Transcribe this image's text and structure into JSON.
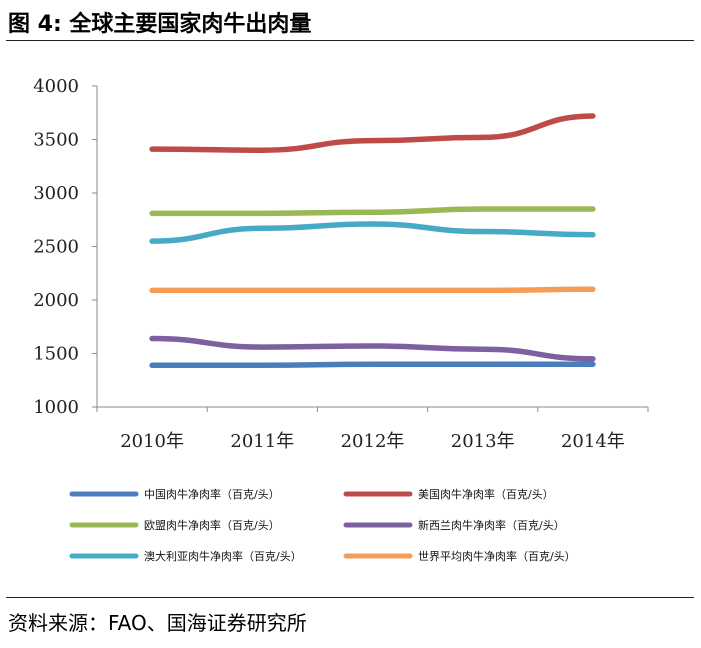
{
  "figure_title": "图 4:  全球主要国家肉牛出肉量",
  "source_text": "资料来源：FAO、国海证券研究所",
  "chart_data": {
    "type": "line",
    "title": "",
    "xlabel": "",
    "ylabel": "",
    "categories": [
      "2010年",
      "2011年",
      "2012年",
      "2013年",
      "2014年"
    ],
    "ylim": [
      1000,
      4000
    ],
    "yticks": [
      1000,
      1500,
      2000,
      2500,
      3000,
      3500,
      4000
    ],
    "grid": false,
    "legend_position": "bottom",
    "series": [
      {
        "name": "中国肉牛净肉率（百克/头）",
        "color": "#4a7ebb",
        "values": [
          1390,
          1390,
          1400,
          1400,
          1400
        ]
      },
      {
        "name": "美国肉牛净肉率（百克/头）",
        "color": "#be4b48",
        "values": [
          3410,
          3400,
          3490,
          3520,
          3720
        ]
      },
      {
        "name": "欧盟肉牛净肉率（百克/头）",
        "color": "#98b954",
        "values": [
          2810,
          2810,
          2820,
          2850,
          2850
        ]
      },
      {
        "name": "新西兰肉牛净肉率（百克/头）",
        "color": "#7d60a0",
        "values": [
          1640,
          1560,
          1570,
          1540,
          1450
        ]
      },
      {
        "name": "澳大利亚肉牛净肉率（百克/头）",
        "color": "#46aac5",
        "values": [
          2550,
          2670,
          2710,
          2640,
          2610
        ]
      },
      {
        "name": "世界平均肉牛净肉率（百克/头）",
        "color": "#f59d56",
        "values": [
          2090,
          2090,
          2090,
          2090,
          2100
        ]
      }
    ]
  }
}
